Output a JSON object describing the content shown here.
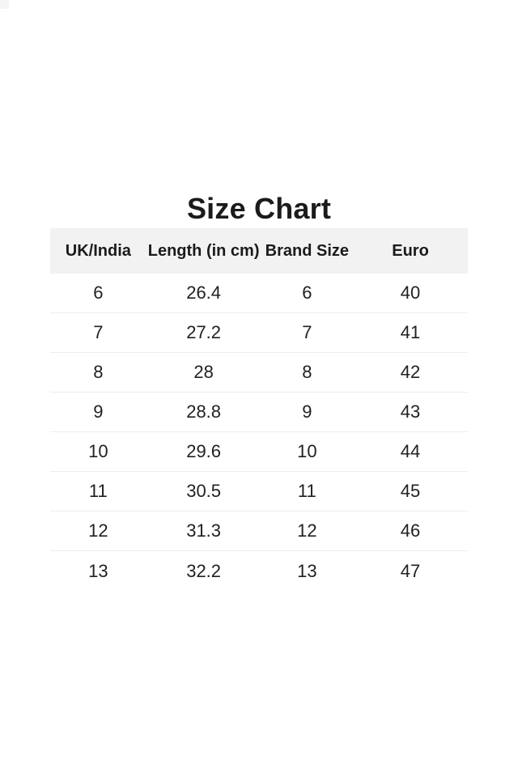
{
  "chart_data": {
    "type": "table",
    "title": "Size Chart",
    "columns": [
      "UK/India",
      "Length (in cm)",
      "Brand Size",
      "Euro"
    ],
    "rows": [
      [
        "6",
        "26.4",
        "6",
        "40"
      ],
      [
        "7",
        "27.2",
        "7",
        "41"
      ],
      [
        "8",
        "28",
        "8",
        "42"
      ],
      [
        "9",
        "28.8",
        "9",
        "43"
      ],
      [
        "10",
        "29.6",
        "10",
        "44"
      ],
      [
        "11",
        "30.5",
        "11",
        "45"
      ],
      [
        "12",
        "31.3",
        "12",
        "46"
      ],
      [
        "13",
        "32.2",
        "13",
        "47"
      ]
    ],
    "layout": {
      "legend": "none",
      "grid": "horizontal-dividers-only",
      "header_row": true
    }
  },
  "style": {
    "page_background": "#ffffff",
    "header_background": "#f2f2f2",
    "divider_color": "#ededed",
    "text_color": "#1e1e1e"
  }
}
